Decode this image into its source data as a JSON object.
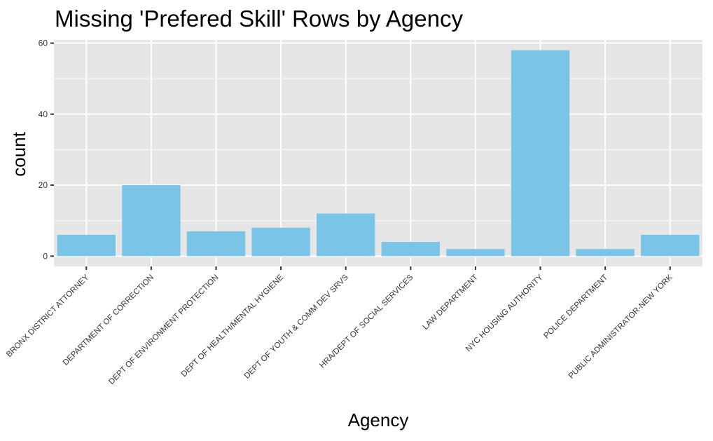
{
  "chart_data": {
    "type": "bar",
    "title": "Missing 'Prefered Skill' Rows by Agency",
    "xlabel": "Agency",
    "ylabel": "count",
    "categories": [
      "BRONX DISTRICT ATTORNEY",
      "DEPARTMENT OF CORRECTION",
      "DEPT OF ENVIRONMENT PROTECTION",
      "DEPT OF HEALTH/MENTAL HYGIENE",
      "DEPT OF YOUTH & COMM DEV SRVS",
      "HRA/DEPT OF SOCIAL SERVICES",
      "LAW DEPARTMENT",
      "NYC HOUSING AUTHORITY",
      "POLICE DEPARTMENT",
      "PUBLIC ADMINISTRATOR-NEW YORK"
    ],
    "values": [
      6,
      20,
      7,
      8,
      12,
      4,
      2,
      58,
      2,
      6
    ],
    "yticks": [
      "0",
      "20",
      "40",
      "60"
    ],
    "ylim": [
      -2.9,
      60.9
    ],
    "grid": true,
    "legend": "none",
    "colors": {
      "bar": "#7ac4e8",
      "panel": "#e6e6e6",
      "grid": "#ffffff",
      "axis_text": "#333333"
    }
  }
}
